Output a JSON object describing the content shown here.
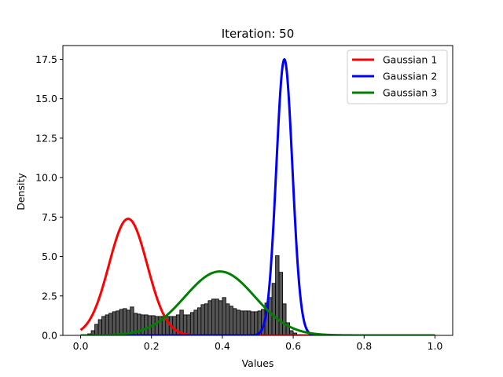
{
  "chart_data": {
    "type": "line",
    "title": "Iteration: 50",
    "xlabel": "Values",
    "ylabel": "Density",
    "xlim": [
      -0.05,
      1.05
    ],
    "ylim": [
      0,
      18.37
    ],
    "x_ticks": [
      0.0,
      0.2,
      0.4,
      0.6,
      0.8,
      1.0
    ],
    "x_tick_labels": [
      "0.0",
      "0.2",
      "0.4",
      "0.6",
      "0.8",
      "1.0"
    ],
    "y_ticks": [
      0.0,
      2.5,
      5.0,
      7.5,
      10.0,
      12.5,
      15.0,
      17.5
    ],
    "y_tick_labels": [
      "0.0",
      "2.5",
      "5.0",
      "7.5",
      "10.0",
      "12.5",
      "15.0",
      "17.5"
    ],
    "grid": false,
    "legend_position": "top-right",
    "histogram": {
      "color": "#555555",
      "edge_color": "#000000",
      "bin_width": 0.01,
      "bin_starts": [
        0.02,
        0.03,
        0.04,
        0.05,
        0.06,
        0.07,
        0.08,
        0.09,
        0.1,
        0.11,
        0.12,
        0.13,
        0.14,
        0.15,
        0.16,
        0.17,
        0.18,
        0.19,
        0.2,
        0.21,
        0.22,
        0.23,
        0.24,
        0.25,
        0.26,
        0.27,
        0.28,
        0.29,
        0.3,
        0.31,
        0.32,
        0.33,
        0.34,
        0.35,
        0.36,
        0.37,
        0.38,
        0.39,
        0.4,
        0.41,
        0.42,
        0.43,
        0.44,
        0.45,
        0.46,
        0.47,
        0.48,
        0.49,
        0.5,
        0.51,
        0.52,
        0.53,
        0.54,
        0.55,
        0.56,
        0.57,
        0.58,
        0.59,
        0.6,
        0.61
      ],
      "values": [
        0.1,
        0.3,
        0.7,
        1.0,
        1.2,
        1.3,
        1.4,
        1.5,
        1.55,
        1.65,
        1.7,
        1.6,
        1.8,
        1.4,
        1.35,
        1.3,
        1.3,
        1.25,
        1.25,
        1.2,
        1.2,
        1.2,
        1.2,
        1.2,
        1.2,
        1.3,
        1.6,
        1.3,
        1.3,
        1.45,
        1.6,
        1.75,
        1.95,
        2.0,
        2.2,
        2.3,
        2.3,
        2.2,
        2.4,
        2.0,
        1.85,
        1.7,
        1.6,
        1.55,
        1.55,
        1.55,
        1.5,
        1.5,
        1.55,
        1.65,
        2.05,
        2.4,
        3.3,
        5.05,
        4.0,
        2.0,
        0.8,
        0.3,
        0.15,
        0.05
      ]
    },
    "series": [
      {
        "name": "Gaussian 1",
        "color": "#ff0000",
        "mean": 0.134,
        "std": 0.054,
        "weight": 1.0
      },
      {
        "name": "Gaussian 2",
        "color": "#0000ff",
        "mean": 0.575,
        "std": 0.0228,
        "weight": 1.0
      },
      {
        "name": "Gaussian 3",
        "color": "#008000",
        "mean": 0.393,
        "std": 0.0985,
        "weight": 1.0
      }
    ]
  }
}
